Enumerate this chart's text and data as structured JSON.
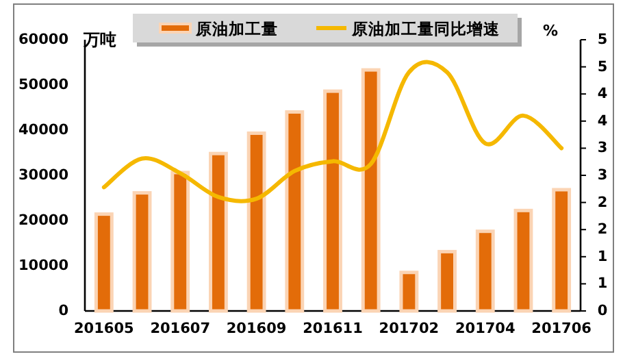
{
  "chart_data": {
    "type": "bar",
    "categories": [
      "201605",
      null,
      "201607",
      null,
      "201609",
      null,
      "201611",
      null,
      "201702",
      null,
      "201704",
      null,
      "201706"
    ],
    "series": [
      {
        "name": "原油加工量",
        "color": "#e36c09",
        "values": [
          21800,
          26500,
          31000,
          35200,
          39700,
          44400,
          49000,
          53700,
          8900,
          13500,
          18000,
          22600,
          27200
        ]
      },
      {
        "name": "原油加工量同比增速",
        "type": "line",
        "axis": "y2",
        "color": "#f5b800",
        "values": [
          2.28,
          2.81,
          2.54,
          2.1,
          2.07,
          2.58,
          2.76,
          2.71,
          4.4,
          4.4,
          3.09,
          3.6,
          3.0
        ]
      }
    ],
    "ylabel": "万吨",
    "y2label": "%",
    "ylim": [
      0,
      60000
    ],
    "yticks": [
      0,
      10000,
      20000,
      30000,
      40000,
      50000,
      60000
    ],
    "y2lim": [
      0,
      5
    ],
    "y2ticks": [
      0,
      {
        "value": 0.5,
        "label": "1"
      },
      1,
      {
        "value": 1.5,
        "label": "2"
      },
      2,
      {
        "value": 2.5,
        "label": "3"
      },
      3,
      {
        "value": 3.5,
        "label": "4"
      },
      4,
      {
        "value": 4.5,
        "label": "5"
      },
      5
    ],
    "legend": "top",
    "grid": false
  }
}
